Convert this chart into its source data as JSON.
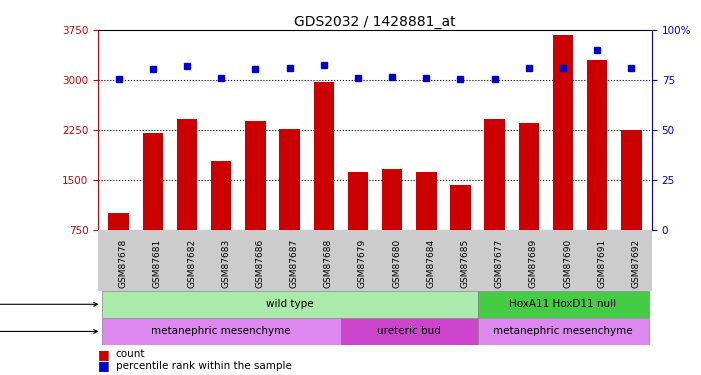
{
  "title": "GDS2032 / 1428881_at",
  "samples": [
    "GSM87678",
    "GSM87681",
    "GSM87682",
    "GSM87683",
    "GSM87686",
    "GSM87687",
    "GSM87688",
    "GSM87679",
    "GSM87680",
    "GSM87684",
    "GSM87685",
    "GSM87677",
    "GSM87689",
    "GSM87690",
    "GSM87691",
    "GSM87692"
  ],
  "counts": [
    1000,
    2200,
    2420,
    1780,
    2380,
    2260,
    2970,
    1620,
    1660,
    1620,
    1420,
    2420,
    2360,
    3680,
    3300,
    2250
  ],
  "percentiles": [
    75.5,
    80.5,
    82,
    76,
    80.5,
    81,
    82.5,
    76,
    76.5,
    76,
    75.5,
    75.5,
    81,
    81,
    90,
    81
  ],
  "ylim_left": [
    750,
    3750
  ],
  "ylim_right": [
    0,
    100
  ],
  "yticks_left": [
    750,
    1500,
    2250,
    3000,
    3750
  ],
  "ytick_labels_left": [
    "750",
    "1500",
    "2250",
    "3000",
    "3750"
  ],
  "yticks_right": [
    0,
    25,
    50,
    75,
    100
  ],
  "ytick_labels_right": [
    "0",
    "25",
    "50",
    "75",
    "100%"
  ],
  "bar_color": "#cc0000",
  "dot_color": "#0000cc",
  "grid_lines": [
    3000,
    2250,
    1500
  ],
  "genotype_groups": [
    {
      "label": "wild type",
      "start": 0,
      "end": 11,
      "color": "#aaeaaa"
    },
    {
      "label": "HoxA11 HoxD11 null",
      "start": 11,
      "end": 16,
      "color": "#44cc44"
    }
  ],
  "tissue_groups": [
    {
      "label": "metanephric mesenchyme",
      "start": 0,
      "end": 7,
      "color": "#dd88ee"
    },
    {
      "label": "ureteric bud",
      "start": 7,
      "end": 11,
      "color": "#cc44cc"
    },
    {
      "label": "metanephric mesenchyme",
      "start": 11,
      "end": 16,
      "color": "#dd88ee"
    }
  ],
  "legend_count_color": "#cc0000",
  "legend_dot_color": "#0000cc",
  "background_color": "#ffffff",
  "tick_label_color_left": "#cc0000",
  "tick_label_color_right": "#0000cc",
  "xticklabel_bg": "#cccccc"
}
